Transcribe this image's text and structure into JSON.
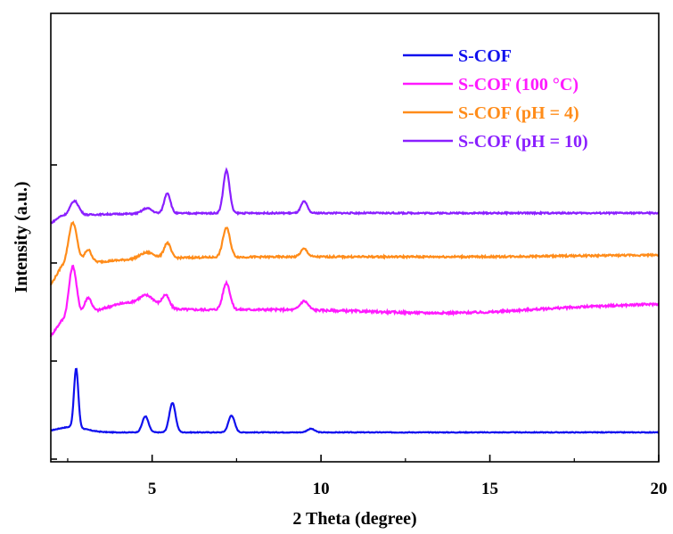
{
  "chart_data": {
    "type": "line",
    "xlabel": "2 Theta (degree)",
    "ylabel": "Intensity (a.u.)",
    "xlim": [
      2,
      20
    ],
    "x_ticks": [
      5,
      10,
      15,
      20
    ],
    "x_tick_labels": [
      "5",
      "10",
      "15",
      "20"
    ],
    "y_tick_labels_shown": false,
    "grid": false,
    "legend_position": "top-right",
    "stacked_offset": true,
    "series": [
      {
        "name": "S-COF",
        "color": "#1010ee",
        "offset": 0,
        "baseline": 0,
        "noise": 0.4,
        "peaks": [
          {
            "x": 2.75,
            "height": 66,
            "width": 0.09
          },
          {
            "x": 4.8,
            "height": 18,
            "width": 0.13
          },
          {
            "x": 5.6,
            "height": 33,
            "width": 0.13
          },
          {
            "x": 7.35,
            "height": 19,
            "width": 0.13
          },
          {
            "x": 9.7,
            "height": 4,
            "width": 0.15
          }
        ]
      },
      {
        "name": "S-COF (100 °C)",
        "color": "#ff1aff",
        "offset": 120,
        "baseline": 0,
        "noise": 1.2,
        "peaks": [
          {
            "x": 2.65,
            "height": 58,
            "width": 0.16
          },
          {
            "x": 3.1,
            "height": 18,
            "width": 0.15
          },
          {
            "x": 4.85,
            "height": 10,
            "width": 0.3
          },
          {
            "x": 5.4,
            "height": 14,
            "width": 0.15
          },
          {
            "x": 7.2,
            "height": 30,
            "width": 0.15
          },
          {
            "x": 9.5,
            "height": 10,
            "width": 0.17
          }
        ]
      },
      {
        "name": "S-COF (pH = 4)",
        "color": "#ff8c1a",
        "offset": 182,
        "baseline": 0,
        "noise": 1.0,
        "peaks": [
          {
            "x": 2.65,
            "height": 48,
            "width": 0.18
          },
          {
            "x": 3.1,
            "height": 15,
            "width": 0.15
          },
          {
            "x": 4.85,
            "height": 7,
            "width": 0.3
          },
          {
            "x": 5.45,
            "height": 17,
            "width": 0.14
          },
          {
            "x": 7.2,
            "height": 33,
            "width": 0.15
          },
          {
            "x": 9.5,
            "height": 9,
            "width": 0.14
          }
        ]
      },
      {
        "name": "S-COF (pH = 10)",
        "color": "#8a1fff",
        "offset": 242,
        "baseline": 0,
        "noise": 0.8,
        "peaks": [
          {
            "x": 2.7,
            "height": 16,
            "width": 0.18
          },
          {
            "x": 4.85,
            "height": 6,
            "width": 0.2
          },
          {
            "x": 5.45,
            "height": 23,
            "width": 0.13
          },
          {
            "x": 7.2,
            "height": 48,
            "width": 0.13
          },
          {
            "x": 9.5,
            "height": 13,
            "width": 0.13
          }
        ]
      }
    ]
  }
}
